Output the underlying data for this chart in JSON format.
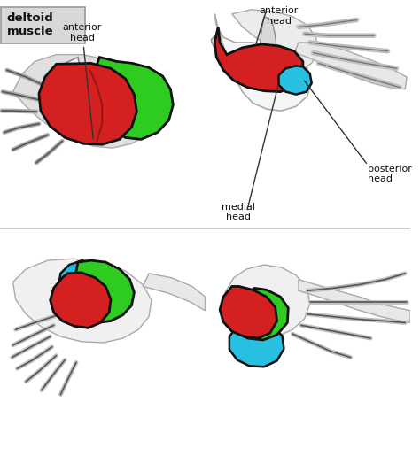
{
  "title": "deltoid\nmuscle",
  "title_box_color": "#d8d8d8",
  "title_stroke_color": "#888888",
  "background_color": "#ffffff",
  "labels": {
    "anterior_head_tl": "anterior\nhead",
    "anterior_head_tr": "anterior\nhead",
    "medial_head": "medial\nhead",
    "posterior_head": "posterior\nhead"
  },
  "colors": {
    "red": "#d42020",
    "green": "#2ecc20",
    "blue": "#28c0e0",
    "outline": "#111111",
    "gray_body": "#c8c8c8",
    "gray_light": "#e8e8e8",
    "white": "#ffffff",
    "dark": "#333333"
  },
  "figsize": [
    4.74,
    5.15
  ],
  "dpi": 100
}
